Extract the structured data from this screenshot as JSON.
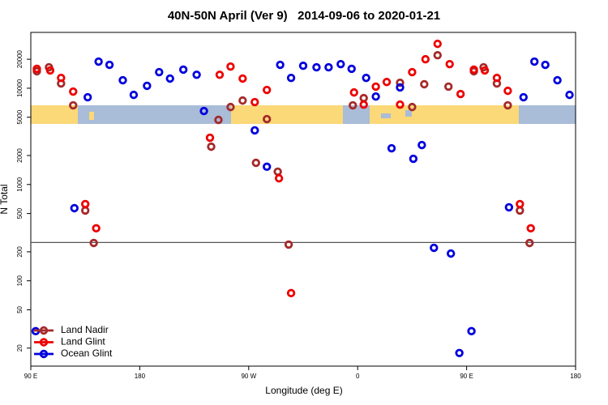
{
  "chart_data": {
    "type": "scatter",
    "title": "40N-50N April (Ver 9)   2014-09-06 to 2020-01-21",
    "xlabel": "Longitude (deg E)",
    "ylabel": "N Total",
    "xlim": [
      90,
      540
    ],
    "xticks": [
      {
        "value": 90,
        "label": "90 E"
      },
      180,
      {
        "value": 270,
        "label": "90 W"
      },
      {
        "value": 360,
        "label": "0"
      },
      {
        "value": 450,
        "label": "90 E"
      },
      {
        "value": 540,
        "label": "180"
      }
    ],
    "ylim": [
      13,
      38000
    ],
    "ylog": true,
    "yticks": [
      20,
      50,
      100,
      200,
      500,
      1000,
      2000,
      5000,
      10000,
      20000
    ],
    "hline": 250,
    "legend": "bottom left",
    "series": [
      {
        "name": "Land Nadir",
        "color": "#a52a2a",
        "x": [
          95,
          105,
          115,
          125,
          135,
          142,
          239,
          245,
          255,
          265,
          276,
          285,
          294,
          303,
          356,
          365,
          395,
          405,
          415,
          426,
          435,
          456,
          464,
          475,
          484,
          494,
          502
        ],
        "values": [
          15000,
          16500,
          11200,
          6640,
          537,
          247,
          2470,
          4690,
          6380,
          7450,
          1680,
          4780,
          1360,
          238,
          6640,
          7900,
          11400,
          6380,
          11000,
          22000,
          10400,
          15000,
          16500,
          11200,
          6640,
          537,
          247
        ]
      },
      {
        "name": "Land Glint",
        "color": "#ee0000",
        "x": [
          95,
          106,
          115,
          125,
          135,
          144,
          238,
          246,
          255,
          265,
          275,
          285,
          295,
          305,
          357,
          365,
          375,
          384,
          395,
          405,
          416,
          426,
          436,
          445,
          456,
          465,
          475,
          484,
          494,
          503
        ],
        "values": [
          15900,
          15300,
          12800,
          9230,
          627,
          351,
          3060,
          13800,
          16800,
          12600,
          7180,
          9600,
          1160,
          74.5,
          9040,
          6760,
          10400,
          11600,
          6760,
          14700,
          20000,
          28900,
          17800,
          8700,
          15600,
          15300,
          12800,
          9400,
          627,
          351
        ]
      },
      {
        "name": "Ocean Glint",
        "color": "#0000dd",
        "x": [
          94,
          126,
          137,
          146,
          155,
          166,
          175,
          186,
          196,
          205,
          216,
          227,
          233,
          275,
          285,
          296,
          305,
          315,
          326,
          336,
          346,
          355,
          367,
          375,
          388,
          395,
          406,
          413,
          423,
          437,
          444,
          454,
          485,
          497,
          506,
          515,
          525,
          535
        ],
        "values": [
          30,
          568,
          8060,
          18900,
          17500,
          12100,
          8530,
          10600,
          14700,
          12600,
          15600,
          13800,
          5800,
          3650,
          1530,
          17500,
          12800,
          17100,
          16500,
          16500,
          17800,
          15900,
          12800,
          8200,
          2380,
          10200,
          1850,
          2570,
          220,
          192,
          17.8,
          30,
          580,
          8060,
          18900,
          17500,
          12100,
          8530
        ]
      }
    ]
  }
}
